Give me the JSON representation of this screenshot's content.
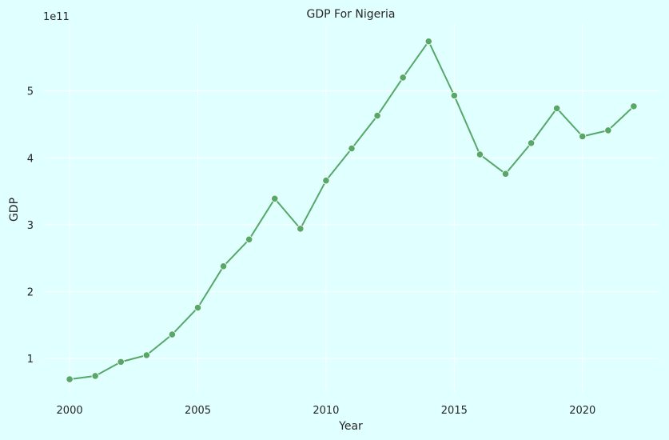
{
  "chart_data": {
    "type": "line",
    "title": "GDP For Nigeria",
    "xlabel": "Year",
    "ylabel": "GDP",
    "y_offset_label": "1e11",
    "xlim": [
      1999.0,
      2023.0
    ],
    "ylim": [
      0.5,
      6.0
    ],
    "xticks": [
      2000,
      2005,
      2010,
      2015,
      2020
    ],
    "yticks": [
      1,
      2,
      3,
      4,
      5
    ],
    "grid": true,
    "line_color": "#55a868",
    "series": [
      {
        "x": [
          2000,
          2001,
          2002,
          2003,
          2004,
          2005,
          2006,
          2007,
          2008,
          2009,
          2010,
          2011,
          2012,
          2013,
          2014,
          2015,
          2016,
          2017,
          2018,
          2019,
          2020,
          2021,
          2022
        ],
        "values": [
          0.69,
          0.74,
          0.95,
          1.05,
          1.36,
          1.76,
          2.38,
          2.78,
          3.39,
          2.94,
          3.66,
          4.14,
          4.63,
          5.2,
          5.74,
          4.93,
          4.05,
          3.76,
          4.22,
          4.74,
          4.32,
          4.41,
          4.77
        ]
      }
    ]
  }
}
